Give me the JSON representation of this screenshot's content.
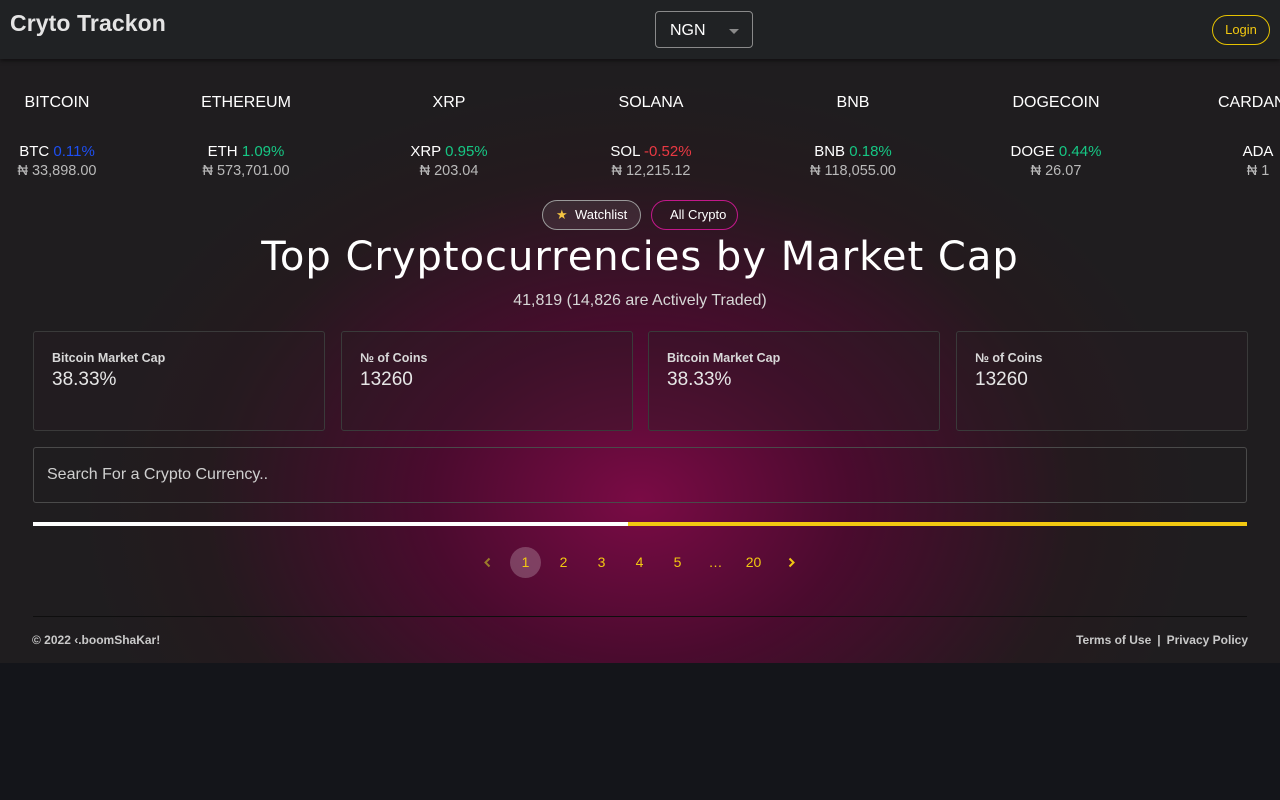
{
  "header": {
    "brand": "Cryto Trackon",
    "currency": "NGN",
    "login_label": "Login"
  },
  "ticker": [
    {
      "image_alt": "BITCOIN",
      "symbol": "BTC",
      "change": "0.11%",
      "trend": "blue",
      "price": "₦ 33,898.00"
    },
    {
      "image_alt": "ETHEREUM",
      "symbol": "ETH",
      "change": "1.09%",
      "trend": "pos",
      "price": "₦ 573,701.00"
    },
    {
      "image_alt": "XRP",
      "symbol": "XRP",
      "change": "0.95%",
      "trend": "pos",
      "price": "₦ 203.04"
    },
    {
      "image_alt": "SOLANA",
      "symbol": "SOL",
      "change": "-0.52%",
      "trend": "neg",
      "price": "₦ 12,215.12"
    },
    {
      "image_alt": "BNB",
      "symbol": "BNB",
      "change": "0.18%",
      "trend": "pos",
      "price": "₦ 118,055.00"
    },
    {
      "image_alt": "DOGECOIN",
      "symbol": "DOGE",
      "change": "0.44%",
      "trend": "pos",
      "price": "₦ 26.07"
    },
    {
      "image_alt": "CARDANO",
      "symbol": "ADA",
      "change": "",
      "trend": "pos",
      "price": "₦ 1"
    }
  ],
  "toggles": {
    "watchlist_label": "Watchlist",
    "all_label": "All Crypto"
  },
  "main": {
    "title": "Top Cryptocurrencies by Market Cap",
    "subtitle": "41,819 (14,826 are Actively Traded)"
  },
  "stats": [
    {
      "label": "Bitcoin Market Cap",
      "value": "38.33%"
    },
    {
      "label": "№ of Coins",
      "value": "13260"
    },
    {
      "label": "Bitcoin Market Cap",
      "value": "38.33%"
    },
    {
      "label": "№ of Coins",
      "value": "13260"
    }
  ],
  "search": {
    "placeholder": "Search For a Crypto Currency.."
  },
  "progress": {
    "fraction": 0.49
  },
  "pagination": {
    "pages": [
      "1",
      "2",
      "3",
      "4",
      "5",
      "…",
      "20"
    ],
    "current": "1"
  },
  "footer": {
    "copyright": "© 2022 ‹.boomShaKar!",
    "terms": "Terms of Use",
    "separator": "|",
    "privacy": "Privacy Policy"
  },
  "colors": {
    "accent": "#f2c811",
    "positive": "#16c784",
    "negative": "#ea3943",
    "highlight": "#1d4ff2",
    "toggle_active_border": "#c2188a"
  }
}
